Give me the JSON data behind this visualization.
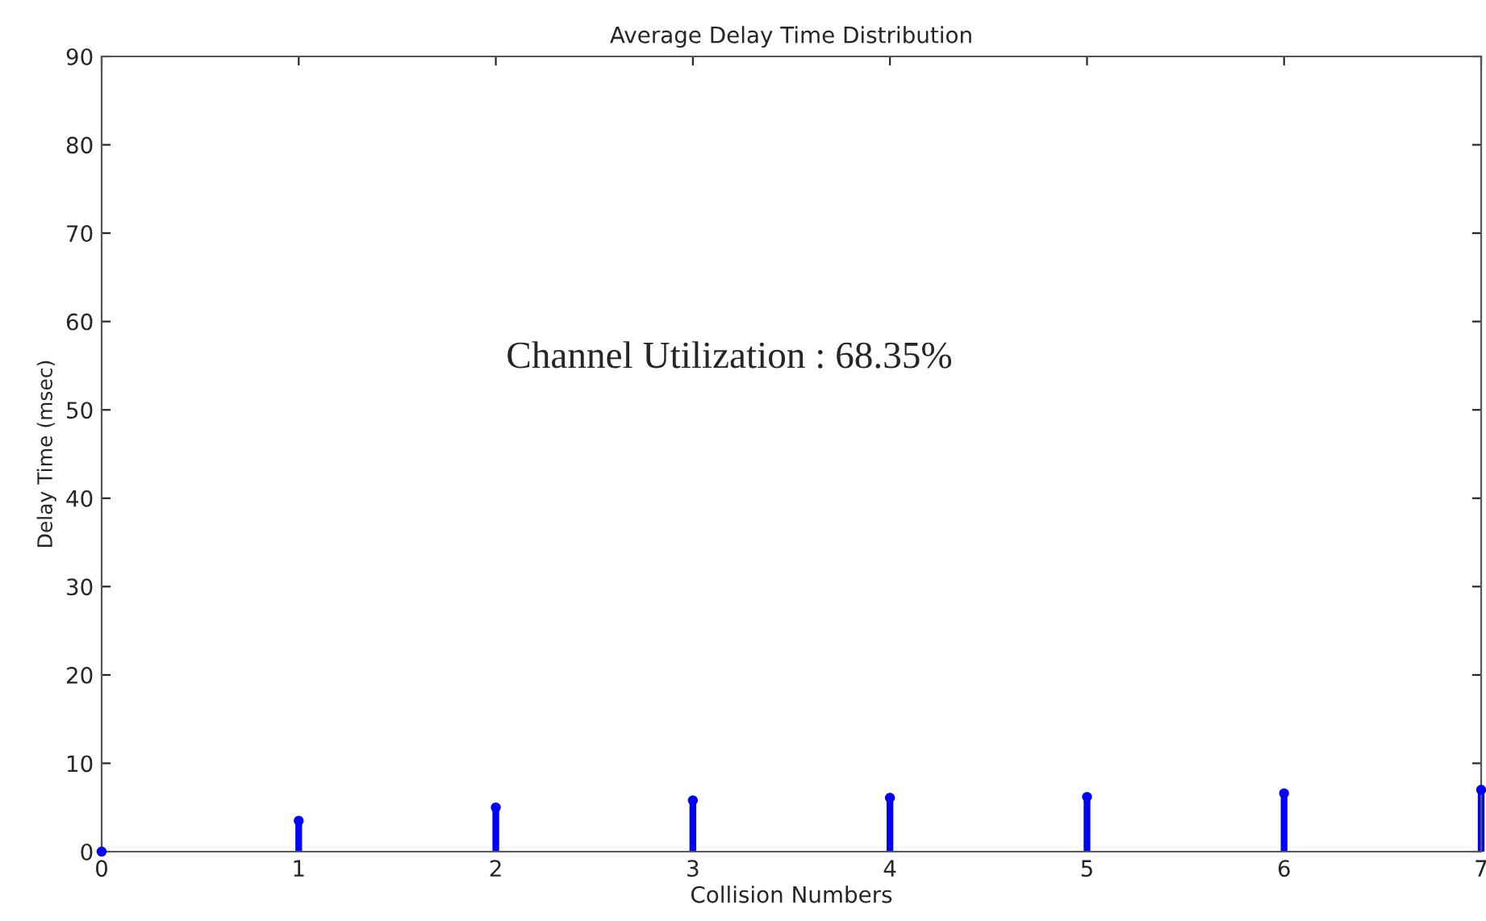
{
  "chart_data": {
    "type": "lollipop",
    "marker": "circle",
    "title": "Average Delay Time Distribution",
    "xlabel": "Collision Numbers",
    "ylabel": "Delay Time (msec)",
    "x": [
      0,
      1,
      2,
      3,
      4,
      5,
      6,
      7
    ],
    "values": [
      0,
      3.5,
      5.0,
      5.8,
      6.1,
      6.2,
      6.6,
      7.0
    ],
    "color": "#0000ff",
    "xlim": [
      0,
      7
    ],
    "xticks": [
      0,
      1,
      2,
      3,
      4,
      5,
      6,
      7
    ],
    "ylim": [
      0,
      90
    ],
    "yticks": [
      0,
      10,
      20,
      30,
      40,
      50,
      60,
      70,
      80,
      90
    ],
    "grid": false,
    "annotations": [
      "Channel Utilization : 68.35%"
    ]
  }
}
